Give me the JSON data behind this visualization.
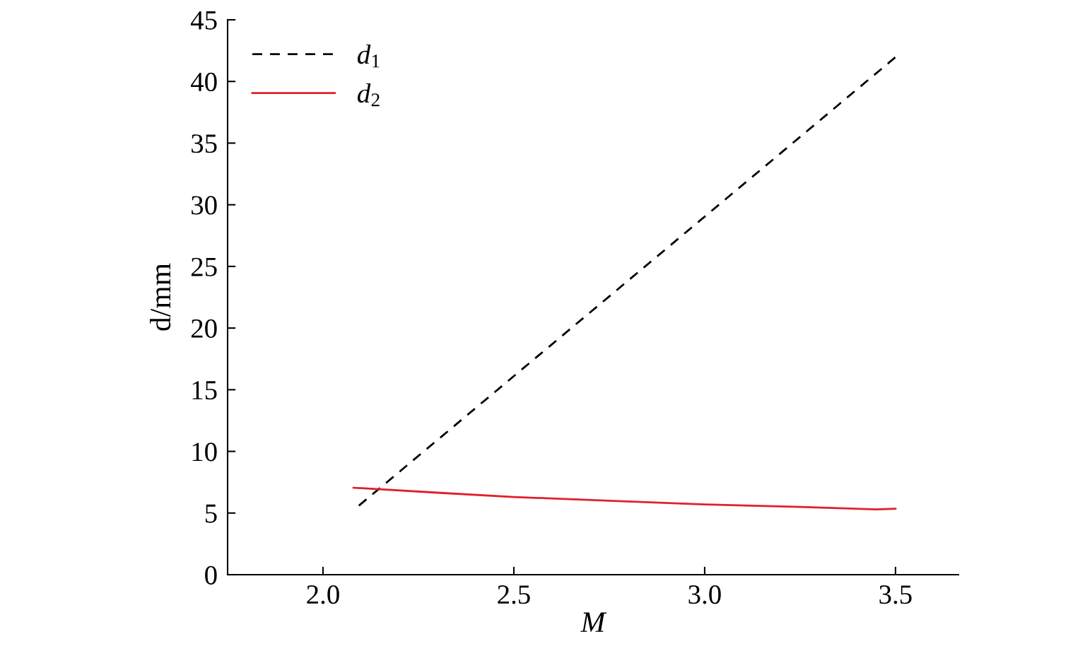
{
  "chart_data": {
    "type": "line",
    "xlabel": "M",
    "ylabel": "d/mm",
    "series": [
      {
        "name": "d$_{1}$",
        "color": "#000000",
        "line_style": "dashed",
        "x": [
          2.094,
          3.505
        ],
        "values": [
          5.6,
          42.1
        ]
      },
      {
        "name": "d$_{2}$",
        "color": "#e0202a",
        "line_style": "solid",
        "x": [
          2.08,
          2.3,
          2.5,
          2.75,
          3.0,
          3.25,
          3.45,
          3.5
        ],
        "values": [
          7.05,
          6.65,
          6.3,
          6.0,
          5.7,
          5.5,
          5.3,
          5.35
        ]
      }
    ],
    "xlim": [
      1.75,
      3.665
    ],
    "ylim": [
      0,
      45
    ],
    "xticks": [
      {
        "value": 2.0,
        "label": "2.0"
      },
      {
        "value": 2.5,
        "label": "2.5"
      },
      {
        "value": 3.0,
        "label": "3.0"
      },
      {
        "value": 3.5,
        "label": "3.5"
      }
    ],
    "yticks": [
      0,
      5,
      10,
      15,
      20,
      25,
      30,
      35,
      40,
      45
    ],
    "grid": false,
    "legend": "top left",
    "marker": "none"
  }
}
